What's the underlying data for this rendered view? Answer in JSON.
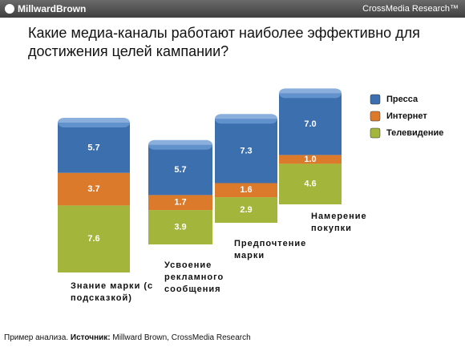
{
  "header": {
    "logo": "MillwardBrown",
    "right": "CrossMedia Research™"
  },
  "footer": {
    "prefix": "Пример анализа.",
    "source_label": "Источник:",
    "source": "Millward Brown, CrossMedia Research"
  },
  "chart_data": {
    "type": "stacked-bar",
    "title": "Какие медиа-каналы работают наиболее эффективно для достижения целей кампании?",
    "categories": [
      "Знание марки (с подсказкой)",
      "Усвоение рекламного сообщения",
      "Предпочтение марки",
      "Намерение покупки"
    ],
    "series": [
      {
        "name": "Пресса",
        "color": "#3b6fae",
        "values": [
          5.7,
          5.7,
          7.3,
          7.0
        ],
        "value_labels": [
          "5.7",
          "5.7",
          "7.3",
          "7.0"
        ]
      },
      {
        "name": "Интернет",
        "color": "#dc7a2c",
        "values": [
          3.7,
          1.7,
          1.6,
          1.0
        ],
        "value_labels": [
          "3.7",
          "1.7",
          "1.6",
          "1.0"
        ]
      },
      {
        "name": "Телевидение",
        "color": "#a3b53a",
        "values": [
          7.6,
          3.9,
          2.9,
          4.6
        ],
        "value_labels": [
          "7.6",
          "3.9",
          "2.9",
          "4.6"
        ]
      }
    ],
    "legend": "top-right"
  }
}
